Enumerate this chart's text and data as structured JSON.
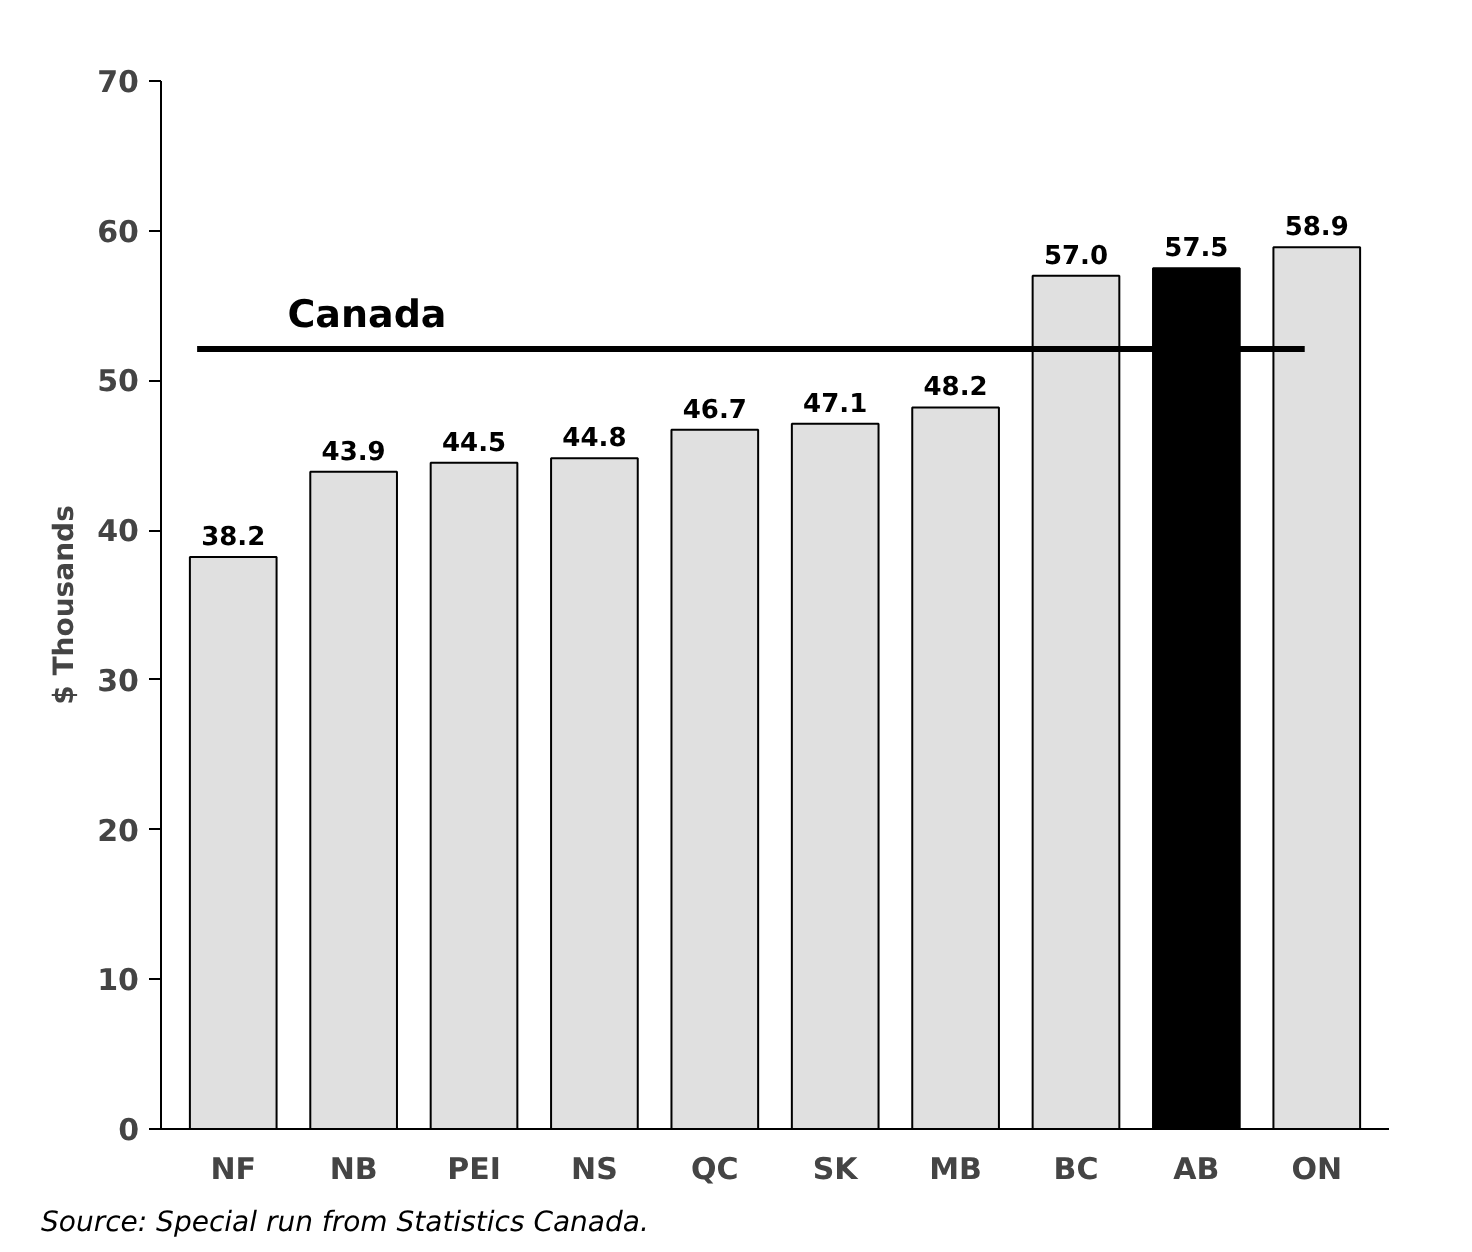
{
  "chart_data": {
    "type": "bar",
    "ylabel": "$ Thousands",
    "categories": [
      "NF",
      "NB",
      "PEI",
      "NS",
      "QC",
      "SK",
      "MB",
      "BC",
      "AB",
      "ON"
    ],
    "values": [
      38.2,
      43.9,
      44.5,
      44.8,
      46.7,
      47.1,
      48.2,
      57.0,
      57.5,
      58.9
    ],
    "colors": [
      "#e0e0e0",
      "#e0e0e0",
      "#e0e0e0",
      "#e0e0e0",
      "#e0e0e0",
      "#e0e0e0",
      "#e0e0e0",
      "#e0e0e0",
      "#000000",
      "#e0e0e0"
    ],
    "ylim": [
      0,
      70
    ],
    "yticks": [
      0,
      10,
      20,
      30,
      40,
      50,
      60,
      70
    ],
    "value_labels": [
      "38.2",
      "43.9",
      "44.5",
      "44.8",
      "46.7",
      "47.1",
      "48.2",
      "57.0",
      "57.5",
      "58.9"
    ],
    "grid": false,
    "ref_lines": [
      {
        "axis": "y",
        "value": 52.1,
        "label": "Canada",
        "color": "#000000"
      }
    ],
    "annotations": [
      "Source:    Special run from Statistics Canada."
    ]
  }
}
